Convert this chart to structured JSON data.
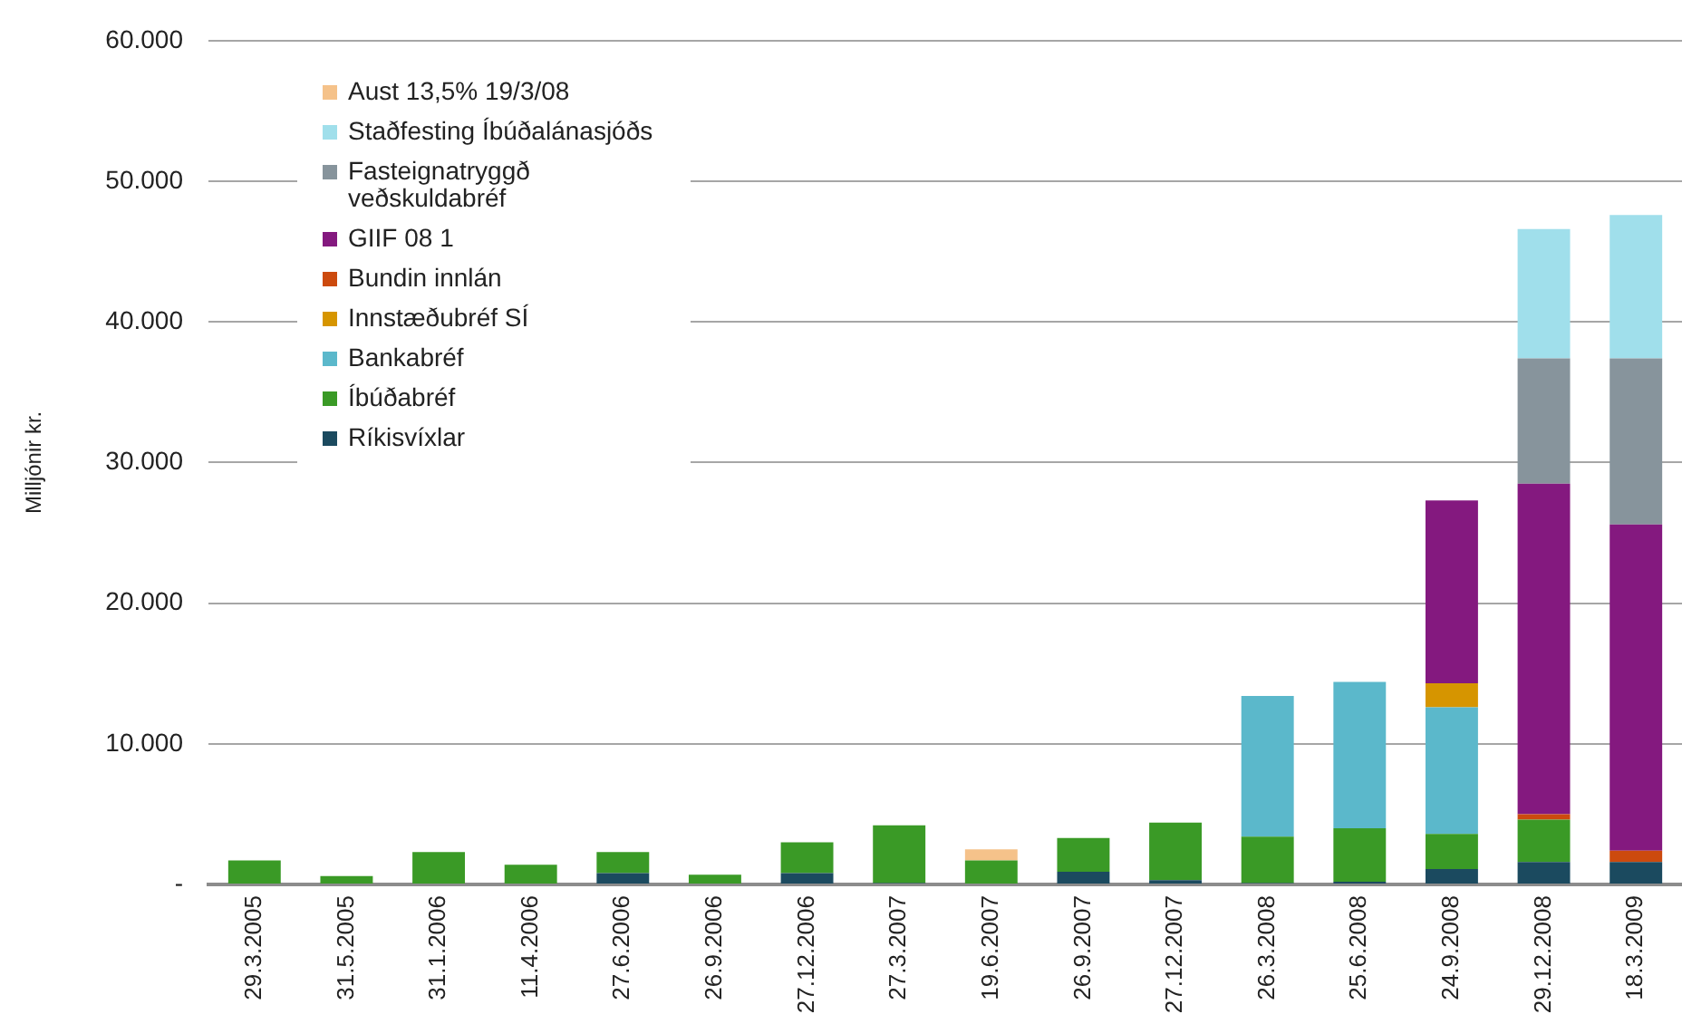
{
  "chart_data": {
    "type": "bar",
    "stacked": true,
    "ylabel": "Milljónir kr.",
    "categories": [
      "29.3.2005",
      "31.5.2005",
      "31.1.2006",
      "11.4.2006",
      "27.6.2006",
      "26.9.2006",
      "27.12.2006",
      "27.3.2007",
      "19.6.2007",
      "26.9.2007",
      "27.12.2007",
      "26.3.2008",
      "25.6.2008",
      "24.9.2008",
      "29.12.2008",
      "18.3.2009"
    ],
    "series": [
      {
        "name": "Ríkisvíxlar",
        "color": "#1b4a5f",
        "values": [
          null,
          null,
          null,
          null,
          800,
          null,
          800,
          100,
          null,
          900,
          300,
          100,
          200,
          1100,
          1600,
          1600
        ]
      },
      {
        "name": "Íbúðabréf",
        "color": "#3a9a26",
        "values": [
          1700,
          600,
          2300,
          1400,
          1500,
          700,
          2200,
          4100,
          1700,
          2400,
          4100,
          3300,
          3800,
          2500,
          3000,
          null
        ]
      },
      {
        "name": "Bankabréf",
        "color": "#5bb8cb",
        "values": [
          null,
          null,
          null,
          null,
          null,
          null,
          null,
          null,
          null,
          null,
          null,
          10000,
          10400,
          9000,
          null,
          null
        ]
      },
      {
        "name": "Innstæðubréf SÍ",
        "color": "#d69500",
        "values": [
          null,
          null,
          null,
          null,
          null,
          null,
          null,
          null,
          null,
          null,
          null,
          null,
          null,
          1700,
          null,
          null
        ]
      },
      {
        "name": "Bundin innlán",
        "color": "#cc4a0e",
        "values": [
          null,
          null,
          null,
          null,
          null,
          null,
          null,
          null,
          null,
          null,
          null,
          null,
          null,
          null,
          400,
          800
        ]
      },
      {
        "name": "GIIF 08 1",
        "color": "#84197f",
        "values": [
          null,
          null,
          null,
          null,
          null,
          null,
          null,
          null,
          null,
          null,
          null,
          null,
          null,
          13000,
          23500,
          23200
        ]
      },
      {
        "name": "Fasteignatryggð veðskuldabréf",
        "color": "#87949c",
        "values": [
          null,
          null,
          null,
          null,
          null,
          null,
          null,
          null,
          null,
          null,
          null,
          null,
          null,
          null,
          8900,
          11800
        ]
      },
      {
        "name": "Staðfesting Íbúðalánasjóðs",
        "color": "#a0dfeb",
        "values": [
          null,
          null,
          null,
          null,
          null,
          null,
          null,
          null,
          null,
          null,
          null,
          null,
          null,
          null,
          9200,
          10200
        ]
      },
      {
        "name": "Aust 13,5% 19/3/08",
        "color": "#f5c28a",
        "values": [
          null,
          null,
          null,
          null,
          null,
          null,
          null,
          null,
          800,
          null,
          null,
          null,
          null,
          null,
          null,
          null
        ]
      }
    ],
    "ylim": [
      0,
      60000
    ],
    "yticks": [
      {
        "value": 0,
        "label": "-"
      },
      {
        "value": 10000,
        "label": "10.000"
      },
      {
        "value": 20000,
        "label": "20.000"
      },
      {
        "value": 30000,
        "label": "30.000"
      },
      {
        "value": 40000,
        "label": "40.000"
      },
      {
        "value": 50000,
        "label": "50.000"
      },
      {
        "value": 60000,
        "label": "60.000"
      }
    ],
    "grid": "y",
    "legend": "top left"
  }
}
